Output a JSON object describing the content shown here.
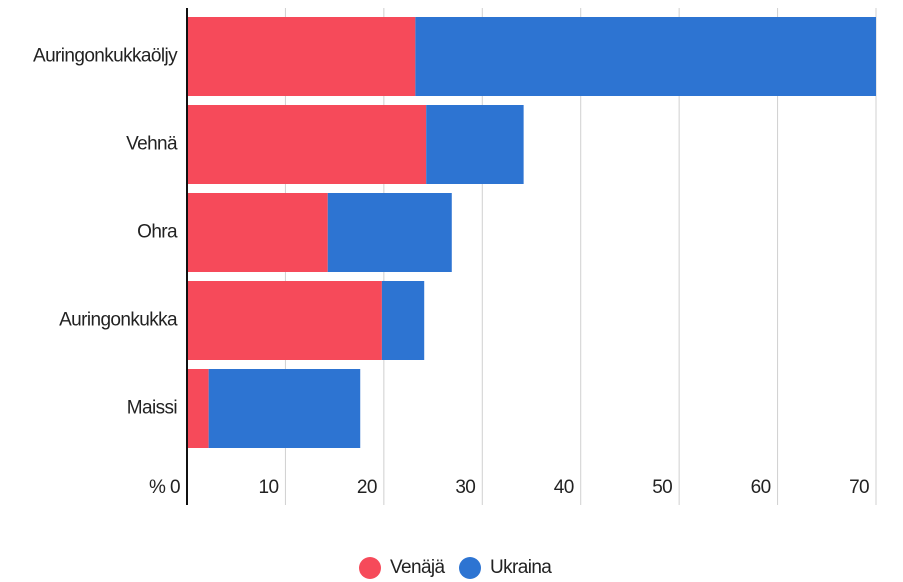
{
  "chart_data": {
    "type": "bar",
    "stacked": true,
    "orientation": "horizontal",
    "categories": [
      "Auringonkukkaöljy",
      "Vehnä",
      "Ohra",
      "Auringonkukka",
      "Maissi"
    ],
    "series": [
      {
        "name": "Venäjä",
        "color": "#f64a5a",
        "values": [
          23.2,
          24.3,
          14.3,
          19.8,
          2.2
        ]
      },
      {
        "name": "Ukraina",
        "color": "#2d74d2",
        "values": [
          50,
          9.9,
          12.6,
          4.3,
          15.4
        ]
      }
    ],
    "xlim": [
      0,
      70
    ],
    "xticks": [
      {
        "value": 0,
        "label": "% 0"
      },
      10,
      20,
      30,
      40,
      50,
      60,
      70
    ],
    "grid": true,
    "legend": "bottom"
  }
}
